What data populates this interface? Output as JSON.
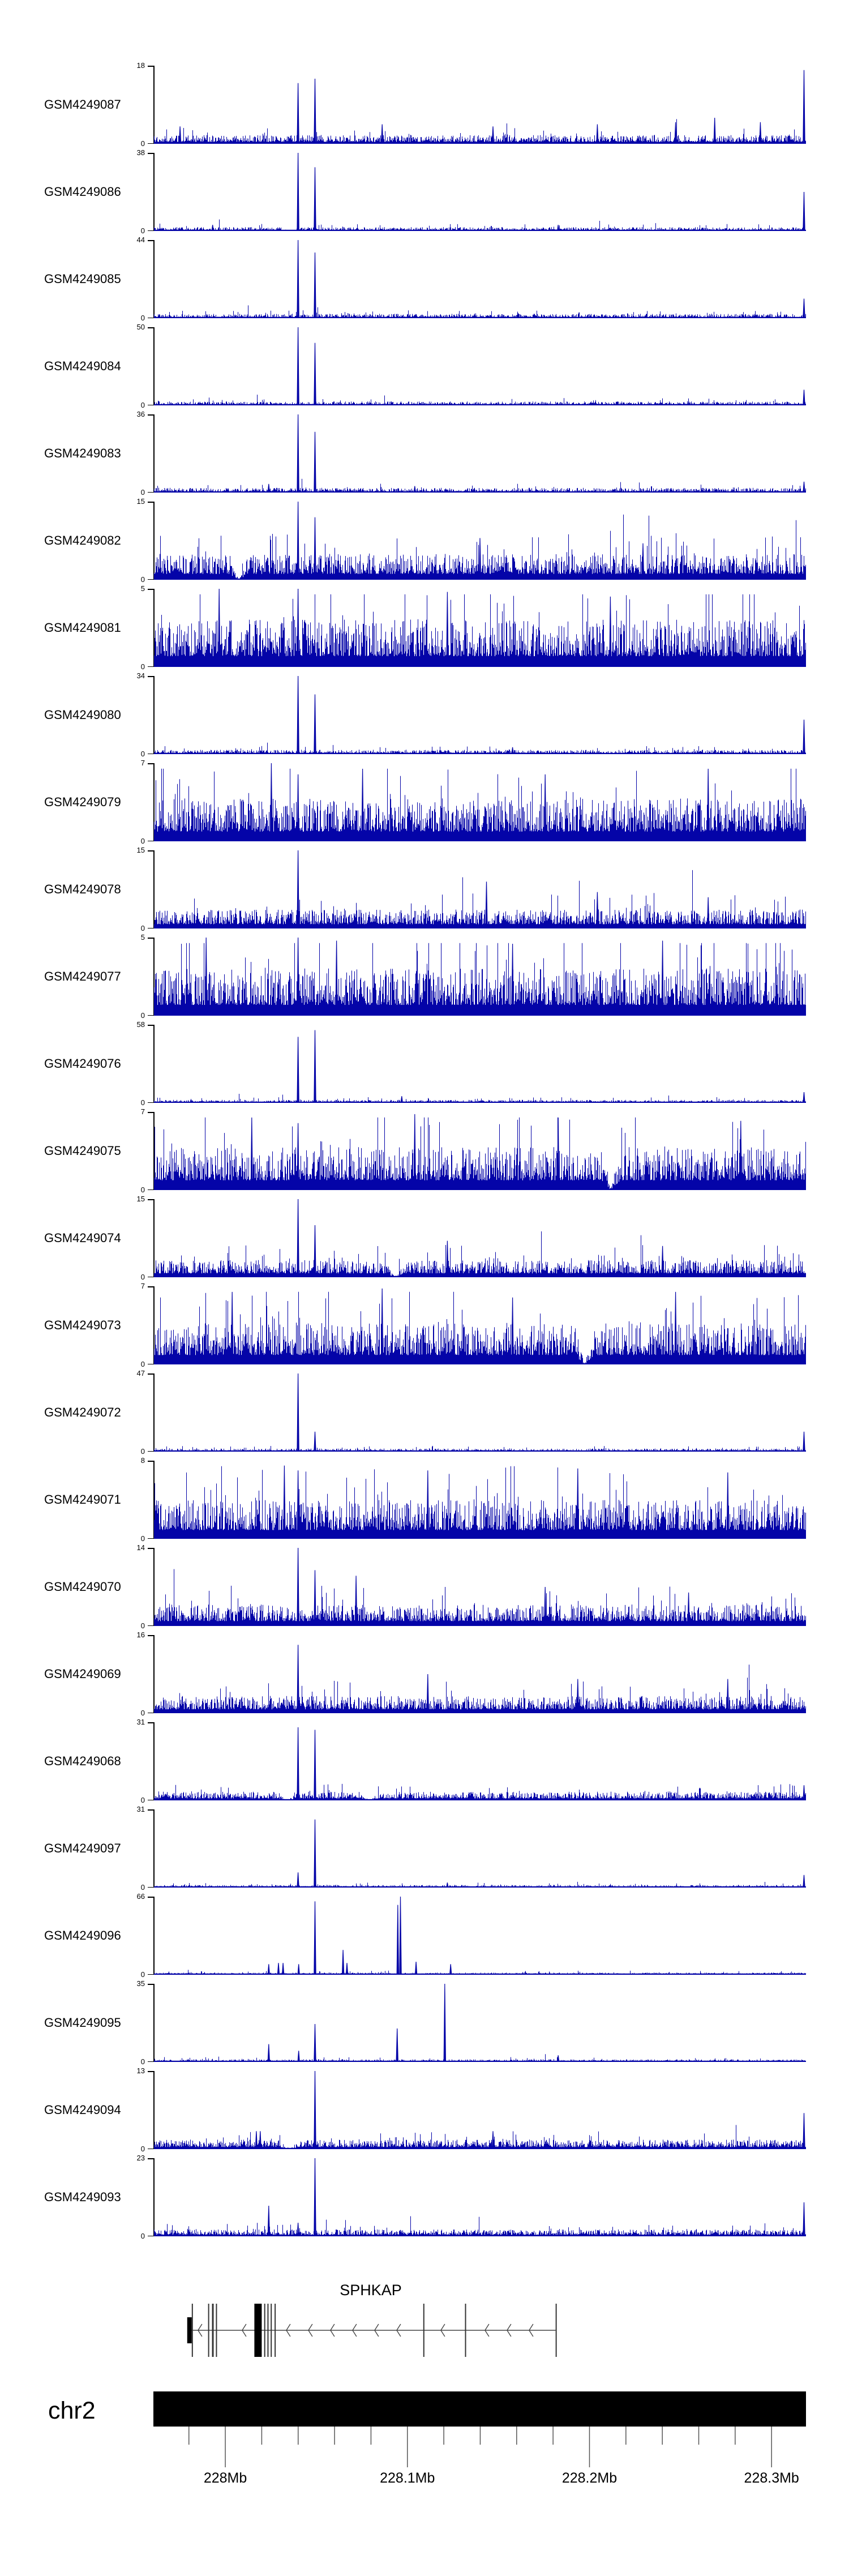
{
  "figure_title": "",
  "y_axis_zero_label": "0",
  "colors": {
    "signal": "#0404a8",
    "axis": "#000000",
    "gene_line": "#444444",
    "gene_exon": "#000000",
    "tick": "#555555",
    "ideogram": "#000000"
  },
  "chart_data": {
    "type": "area",
    "description": "Genome browser read-coverage tracks for 25 GEO samples over chr2 227.96-228.32 Mb around the SPHKAP gene",
    "x_axis": {
      "chromosome": "chr2",
      "start_mb": 227.9605,
      "end_mb": 228.3189,
      "major_tick_labels": [
        "228Mb",
        "228.1Mb",
        "228.2Mb",
        "228.3Mb"
      ],
      "major_tick_mb": [
        228.0,
        228.1,
        228.2,
        228.3
      ],
      "minor_tick_interval_mb": 0.02
    },
    "tracks": [
      {
        "label": "GSM4249087",
        "ymin": 0,
        "ymax": 18,
        "noise": 0.1,
        "seed": 11,
        "dips": [],
        "peaks": [
          [
            0.04,
            4
          ],
          [
            0.221,
            14
          ],
          [
            0.247,
            15
          ],
          [
            0.35,
            4.5
          ],
          [
            0.52,
            4
          ],
          [
            0.68,
            4.5
          ],
          [
            0.8,
            5
          ],
          [
            0.86,
            6
          ],
          [
            0.93,
            5
          ],
          [
            0.997,
            17
          ]
        ]
      },
      {
        "label": "GSM4249086",
        "ymin": 0,
        "ymax": 38,
        "noise": 0.045,
        "seed": 22,
        "dips": [
          0.208
        ],
        "peaks": [
          [
            0.09,
            3
          ],
          [
            0.221,
            38
          ],
          [
            0.247,
            31
          ],
          [
            0.62,
            3
          ],
          [
            0.997,
            19
          ]
        ]
      },
      {
        "label": "GSM4249085",
        "ymin": 0,
        "ymax": 44,
        "noise": 0.05,
        "seed": 33,
        "dips": [],
        "peaks": [
          [
            0.221,
            44
          ],
          [
            0.247,
            37
          ],
          [
            0.997,
            11
          ]
        ]
      },
      {
        "label": "GSM4249084",
        "ymin": 0,
        "ymax": 50,
        "noise": 0.045,
        "seed": 44,
        "dips": [],
        "peaks": [
          [
            0.221,
            50
          ],
          [
            0.247,
            40
          ],
          [
            0.997,
            10
          ]
        ]
      },
      {
        "label": "GSM4249083",
        "ymin": 0,
        "ymax": 36,
        "noise": 0.055,
        "seed": 55,
        "dips": [],
        "peaks": [
          [
            0.176,
            4
          ],
          [
            0.221,
            36
          ],
          [
            0.247,
            28
          ],
          [
            0.4,
            3
          ],
          [
            0.997,
            5
          ]
        ]
      },
      {
        "label": "GSM4249082",
        "ymin": 0,
        "ymax": 15,
        "noise": 0.3,
        "seed": 66,
        "dips": [
          0.13
        ],
        "peaks": [
          [
            0.221,
            15
          ],
          [
            0.247,
            12
          ],
          [
            0.5,
            8
          ],
          [
            0.75,
            7
          ]
        ]
      },
      {
        "label": "GSM4249081",
        "ymin": 0,
        "ymax": 5,
        "noise": 0.55,
        "seed": 77,
        "dips": [],
        "peaks": [
          [
            0.1,
            5
          ],
          [
            0.221,
            5
          ],
          [
            0.45,
            4.8
          ],
          [
            0.7,
            4.5
          ]
        ]
      },
      {
        "label": "GSM4249080",
        "ymin": 0,
        "ymax": 34,
        "noise": 0.05,
        "seed": 88,
        "dips": [],
        "peaks": [
          [
            0.221,
            34
          ],
          [
            0.247,
            26
          ],
          [
            0.55,
            3
          ],
          [
            0.997,
            15
          ]
        ]
      },
      {
        "label": "GSM4249079",
        "ymin": 0,
        "ymax": 7,
        "noise": 0.5,
        "seed": 99,
        "dips": [],
        "peaks": [
          [
            0.18,
            7
          ],
          [
            0.221,
            6
          ],
          [
            0.32,
            6.5
          ],
          [
            0.6,
            6
          ],
          [
            0.85,
            6.5
          ]
        ]
      },
      {
        "label": "GSM4249078",
        "ymin": 0,
        "ymax": 15,
        "noise": 0.22,
        "seed": 110,
        "dips": [],
        "peaks": [
          [
            0.221,
            15
          ],
          [
            0.51,
            9
          ],
          [
            0.68,
            7
          ],
          [
            0.85,
            6
          ]
        ]
      },
      {
        "label": "GSM4249077",
        "ymin": 0,
        "ymax": 5,
        "noise": 0.55,
        "seed": 121,
        "dips": [],
        "peaks": [
          [
            0.08,
            5
          ],
          [
            0.221,
            5
          ],
          [
            0.28,
            4.8
          ],
          [
            0.55,
            4.6
          ],
          [
            0.78,
            4.8
          ]
        ]
      },
      {
        "label": "GSM4249076",
        "ymin": 0,
        "ymax": 58,
        "noise": 0.035,
        "seed": 132,
        "dips": [],
        "peaks": [
          [
            0.221,
            49
          ],
          [
            0.247,
            54
          ],
          [
            0.38,
            5
          ],
          [
            0.997,
            8
          ]
        ]
      },
      {
        "label": "GSM4249075",
        "ymin": 0,
        "ymax": 7,
        "noise": 0.5,
        "seed": 143,
        "dips": [
          0.7
        ],
        "peaks": [
          [
            0.15,
            6.5
          ],
          [
            0.221,
            6
          ],
          [
            0.4,
            6.8
          ],
          [
            0.62,
            6.5
          ],
          [
            0.9,
            6.2
          ]
        ]
      },
      {
        "label": "GSM4249074",
        "ymin": 0,
        "ymax": 15,
        "noise": 0.2,
        "seed": 154,
        "dips": [
          0.37
        ],
        "peaks": [
          [
            0.221,
            15
          ],
          [
            0.247,
            10
          ],
          [
            0.45,
            7
          ],
          [
            0.78,
            6
          ]
        ]
      },
      {
        "label": "GSM4249073",
        "ymin": 0,
        "ymax": 7,
        "noise": 0.48,
        "seed": 165,
        "dips": [
          0.66
        ],
        "peaks": [
          [
            0.12,
            6.5
          ],
          [
            0.35,
            6.8
          ],
          [
            0.55,
            6
          ],
          [
            0.8,
            6.5
          ]
        ]
      },
      {
        "label": "GSM4249072",
        "ymin": 0,
        "ymax": 47,
        "noise": 0.035,
        "seed": 176,
        "dips": [],
        "peaks": [
          [
            0.221,
            47
          ],
          [
            0.247,
            12
          ],
          [
            0.997,
            12
          ]
        ]
      },
      {
        "label": "GSM4249071",
        "ymin": 0,
        "ymax": 8,
        "noise": 0.45,
        "seed": 187,
        "dips": [],
        "peaks": [
          [
            0.2,
            7.5
          ],
          [
            0.221,
            7
          ],
          [
            0.42,
            7
          ],
          [
            0.65,
            7.2
          ],
          [
            0.88,
            6.8
          ]
        ]
      },
      {
        "label": "GSM4249070",
        "ymin": 0,
        "ymax": 14,
        "noise": 0.25,
        "seed": 198,
        "dips": [],
        "peaks": [
          [
            0.221,
            14
          ],
          [
            0.247,
            10
          ],
          [
            0.31,
            9
          ],
          [
            0.6,
            7
          ],
          [
            0.82,
            6
          ]
        ]
      },
      {
        "label": "GSM4249069",
        "ymin": 0,
        "ymax": 16,
        "noise": 0.2,
        "seed": 209,
        "dips": [],
        "peaks": [
          [
            0.221,
            14
          ],
          [
            0.42,
            8
          ],
          [
            0.65,
            7
          ],
          [
            0.88,
            7
          ]
        ]
      },
      {
        "label": "GSM4249068",
        "ymin": 0,
        "ymax": 31,
        "noise": 0.1,
        "seed": 220,
        "dips": [
          0.205,
          0.33
        ],
        "peaks": [
          [
            0.221,
            29
          ],
          [
            0.247,
            28
          ],
          [
            0.997,
            6
          ]
        ]
      },
      {
        "label": "GSM4249097",
        "ymin": 0,
        "ymax": 31,
        "noise": 0.03,
        "seed": 231,
        "dips": [],
        "peaks": [
          [
            0.221,
            6
          ],
          [
            0.247,
            27
          ],
          [
            0.45,
            2
          ],
          [
            0.997,
            5
          ]
        ]
      },
      {
        "label": "GSM4249096",
        "ymin": 0,
        "ymax": 66,
        "noise": 0.025,
        "seed": 242,
        "dips": [],
        "peaks": [
          [
            0.176,
            9
          ],
          [
            0.191,
            10
          ],
          [
            0.198,
            10
          ],
          [
            0.222,
            9
          ],
          [
            0.247,
            62
          ],
          [
            0.29,
            21
          ],
          [
            0.296,
            10
          ],
          [
            0.374,
            59
          ],
          [
            0.378,
            66
          ],
          [
            0.402,
            11
          ],
          [
            0.455,
            9
          ]
        ]
      },
      {
        "label": "GSM4249095",
        "ymin": 0,
        "ymax": 35,
        "noise": 0.03,
        "seed": 253,
        "dips": [],
        "peaks": [
          [
            0.176,
            8
          ],
          [
            0.222,
            5
          ],
          [
            0.247,
            17
          ],
          [
            0.373,
            15
          ],
          [
            0.446,
            35
          ],
          [
            0.62,
            3
          ]
        ]
      },
      {
        "label": "GSM4249094",
        "ymin": 0,
        "ymax": 13,
        "noise": 0.11,
        "seed": 264,
        "dips": [
          0.208
        ],
        "peaks": [
          [
            0.157,
            3
          ],
          [
            0.163,
            3
          ],
          [
            0.247,
            13
          ],
          [
            0.52,
            3
          ],
          [
            0.997,
            6
          ]
        ]
      },
      {
        "label": "GSM4249093",
        "ymin": 0,
        "ymax": 23,
        "noise": 0.08,
        "seed": 275,
        "dips": [],
        "peaks": [
          [
            0.176,
            9
          ],
          [
            0.221,
            4
          ],
          [
            0.247,
            23
          ],
          [
            0.997,
            10
          ]
        ]
      }
    ],
    "gene_track": {
      "label": "SPHKAP",
      "strand": "-",
      "line_start": 0.052,
      "line_end": 0.616,
      "exons": [
        {
          "x": 0.051,
          "w": 8,
          "tall": false,
          "thick": true
        },
        {
          "x": 0.058,
          "w": 2,
          "tall": true,
          "thick": false
        },
        {
          "x": 0.083,
          "w": 2,
          "tall": true,
          "thick": false
        },
        {
          "x": 0.089,
          "w": 3,
          "tall": true,
          "thick": false
        },
        {
          "x": 0.095,
          "w": 2,
          "tall": true,
          "thick": false
        },
        {
          "x": 0.154,
          "w": 13,
          "tall": true,
          "thick": true
        },
        {
          "x": 0.169,
          "w": 2,
          "tall": true,
          "thick": false
        },
        {
          "x": 0.174,
          "w": 2,
          "tall": true,
          "thick": false
        },
        {
          "x": 0.179,
          "w": 2,
          "tall": true,
          "thick": false
        },
        {
          "x": 0.185,
          "w": 2,
          "tall": true,
          "thick": false
        },
        {
          "x": 0.413,
          "w": 2,
          "tall": true,
          "thick": false
        },
        {
          "x": 0.477,
          "w": 2,
          "tall": true,
          "thick": false
        },
        {
          "x": 0.616,
          "w": 2,
          "tall": true,
          "thick": false
        }
      ]
    },
    "chromosome": {
      "name": "chr2",
      "major_ticks": [
        {
          "mb": 228.0,
          "label": "228Mb"
        },
        {
          "mb": 228.1,
          "label": "228.1Mb"
        },
        {
          "mb": 228.2,
          "label": "228.2Mb"
        },
        {
          "mb": 228.3,
          "label": "228.3Mb"
        }
      ]
    }
  }
}
